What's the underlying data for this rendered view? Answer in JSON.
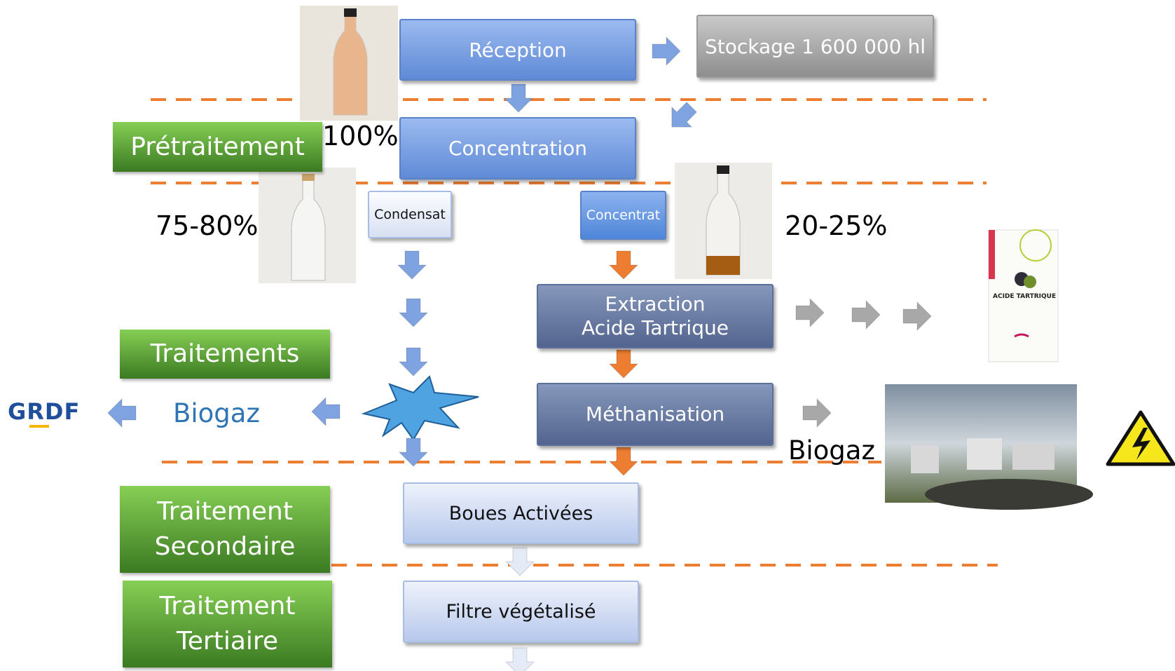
{
  "nodes": {
    "reception": "Réception",
    "stockage": "Stockage 1 600 000 hl",
    "concentration": "Concentration",
    "condensat": "Condensat",
    "concentrat": "Concentrat",
    "extraction": "Extraction Acide Tartrique",
    "methanisation": "Méthanisation",
    "boues": "Boues Activées",
    "filtre": "Filtre végétalisé"
  },
  "stages": {
    "pretraitement": "Prétraitement",
    "traitements": "Traitements",
    "secondaire": "Traitement Secondaire",
    "tertiaire": "Traitement Tertiaire"
  },
  "labels": {
    "share_total": "100%",
    "share_condensat": "75-80%",
    "share_concentrat": "20-25%",
    "biogaz_grdf": "Biogaz",
    "biogaz_plant": "Biogaz",
    "grdf": "GRDF",
    "product": "ACIDE TARTRIQUE"
  }
}
